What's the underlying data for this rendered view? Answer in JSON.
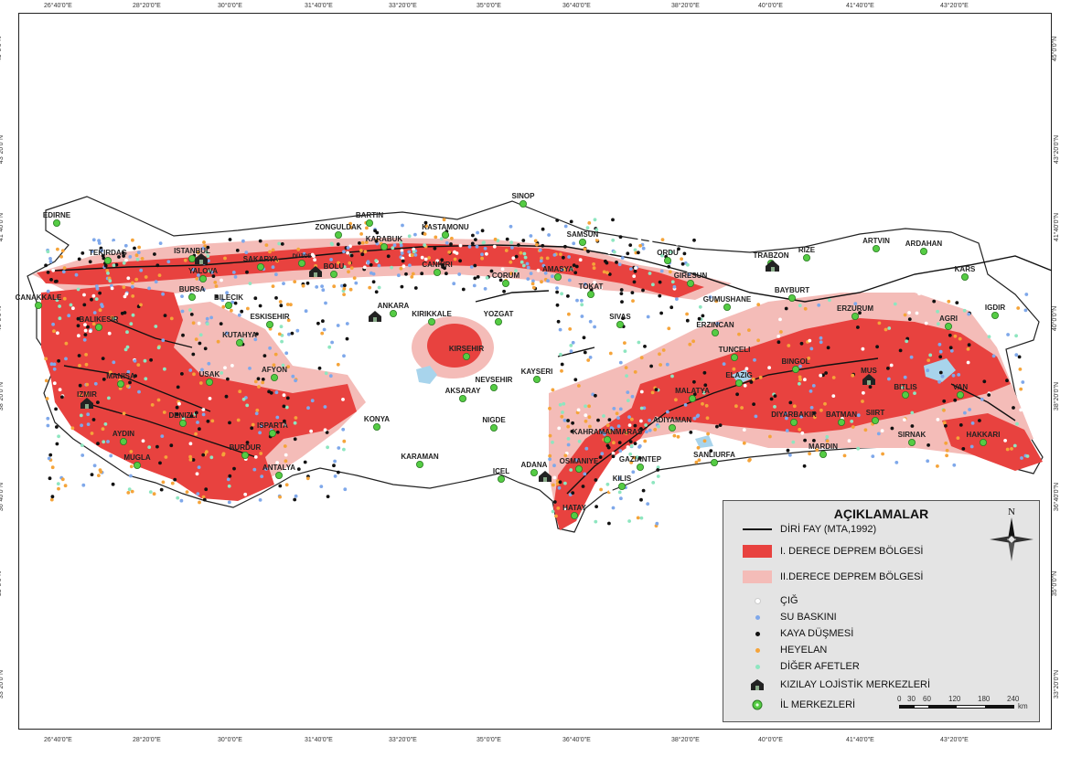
{
  "lon_ticks": [
    "26°40'0\"E",
    "28°20'0\"E",
    "30°0'0\"E",
    "31°40'0\"E",
    "33°20'0\"E",
    "35°0'0\"E",
    "36°40'0\"E",
    "38°20'0\"E",
    "40°0'0\"E",
    "41°40'0\"E",
    "43°20'0\"E"
  ],
  "lat_ticks": [
    "45°0'0\"N",
    "43°20'0\"N",
    "41°40'0\"N",
    "40°0'0\"N",
    "38°20'0\"N",
    "36°40'0\"N",
    "35°0'0\"N",
    "33°20'0\"N"
  ],
  "cities": [
    {
      "name": "EDIRNE"
    },
    {
      "name": "TEKIRDAG"
    },
    {
      "name": "ISTANBUL"
    },
    {
      "name": "YALOVA"
    },
    {
      "name": "CANAKKALE"
    },
    {
      "name": "BURSA"
    },
    {
      "name": "BILECIK"
    },
    {
      "name": "SAKARYA"
    },
    {
      "name": "DÜZCE"
    },
    {
      "name": "BOLU"
    },
    {
      "name": "ZONGULDAK"
    },
    {
      "name": "BARTIN"
    },
    {
      "name": "KARABUK"
    },
    {
      "name": "KASTAMONU"
    },
    {
      "name": "SINOP"
    },
    {
      "name": "SAMSUN"
    },
    {
      "name": "ORDU"
    },
    {
      "name": "GIRESUN"
    },
    {
      "name": "TRABZON"
    },
    {
      "name": "RIZE"
    },
    {
      "name": "ARTVIN"
    },
    {
      "name": "ARDAHAN"
    },
    {
      "name": "KARS"
    },
    {
      "name": "IGDIR"
    },
    {
      "name": "AGRI"
    },
    {
      "name": "ERZURUM"
    },
    {
      "name": "BAYBURT"
    },
    {
      "name": "GUMUSHANE"
    },
    {
      "name": "ERZINCAN"
    },
    {
      "name": "TUNCELI"
    },
    {
      "name": "BINGOL"
    },
    {
      "name": "MUS"
    },
    {
      "name": "BITLIS"
    },
    {
      "name": "VAN"
    },
    {
      "name": "HAKKARI"
    },
    {
      "name": "SIRNAK"
    },
    {
      "name": "SIIRT"
    },
    {
      "name": "BATMAN"
    },
    {
      "name": "DIYARBAKIR"
    },
    {
      "name": "MARDIN"
    },
    {
      "name": "ELAZIG"
    },
    {
      "name": "MALATYA"
    },
    {
      "name": "ADIYAMAN"
    },
    {
      "name": "SANLIURFA"
    },
    {
      "name": "GAZIANTEP"
    },
    {
      "name": "KILIS"
    },
    {
      "name": "HATAY"
    },
    {
      "name": "OSMANIYE"
    },
    {
      "name": "ADANA"
    },
    {
      "name": "KAHRAMANMARAS"
    },
    {
      "name": "ICEL"
    },
    {
      "name": "NIGDE"
    },
    {
      "name": "KARAMAN"
    },
    {
      "name": "KONYA"
    },
    {
      "name": "AKSARAY"
    },
    {
      "name": "NEVSEHIR"
    },
    {
      "name": "KAYSERI"
    },
    {
      "name": "KIRSEHIR"
    },
    {
      "name": "KIRIKKALE"
    },
    {
      "name": "YOZGAT"
    },
    {
      "name": "SIVAS"
    },
    {
      "name": "TOKAT"
    },
    {
      "name": "AMASYA"
    },
    {
      "name": "CORUM"
    },
    {
      "name": "CANKIRI"
    },
    {
      "name": "ANKARA"
    },
    {
      "name": "ESKISEHIR"
    },
    {
      "name": "KUTAHYA"
    },
    {
      "name": "BALIKESIR"
    },
    {
      "name": "MANISA"
    },
    {
      "name": "IZMIR"
    },
    {
      "name": "AYDIN"
    },
    {
      "name": "MUGLA"
    },
    {
      "name": "USAK"
    },
    {
      "name": "AFYON"
    },
    {
      "name": "ISPARTA"
    },
    {
      "name": "BURDUR"
    },
    {
      "name": "ANTALYA"
    },
    {
      "name": "DENIZLI"
    }
  ],
  "legend": {
    "title": "AÇIKLAMALAR",
    "items": [
      {
        "label": "DİRİ FAY (MTA,1992)",
        "symbol": "line",
        "color": "#111111"
      },
      {
        "label": "I. DERECE DEPREM BÖLGESİ",
        "symbol": "fill",
        "color": "#e8423f"
      },
      {
        "label": "II.DERECE DEPREM BÖLGESİ",
        "symbol": "fill",
        "color": "#f4bcb8"
      },
      {
        "label": "ÇIĞ",
        "symbol": "dot",
        "color": "#ffffff"
      },
      {
        "label": "SU BASKINI",
        "symbol": "dot",
        "color": "#7fa8ea"
      },
      {
        "label": "KAYA DÜŞMESİ",
        "symbol": "dot",
        "color": "#111111"
      },
      {
        "label": "HEYELAN",
        "symbol": "dot",
        "color": "#f5a43a"
      },
      {
        "label": "DİĞER AFETLER",
        "symbol": "dot",
        "color": "#8ee6c0"
      },
      {
        "label": "KIZILAY LOJİSTİK MERKEZLERİ",
        "symbol": "box",
        "color": "#222222"
      },
      {
        "label": "İL MERKEZLERİ",
        "symbol": "pin",
        "color": "#55cc44"
      }
    ]
  },
  "scale": {
    "labels": [
      "0",
      "30",
      "60",
      "120",
      "180",
      "240"
    ],
    "unit": "km"
  },
  "north_label": "N",
  "colors": {
    "zone1": "#e8423f",
    "zone2": "#f4bcb8",
    "water": "#a8d4ec",
    "border": "#222222"
  }
}
